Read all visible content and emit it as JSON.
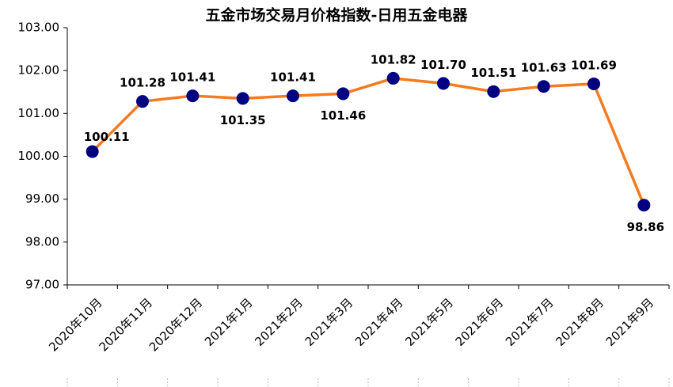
{
  "chart_data": {
    "type": "line",
    "title": "五金市场交易月价格指数-日用五金电器",
    "categories": [
      "2020年10月",
      "2020年11月",
      "2020年12月",
      "2021年1月",
      "2021年2月",
      "2021年3月",
      "2021年4月",
      "2021年5月",
      "2021年6月",
      "2021年7月",
      "2021年8月",
      "2021年9月"
    ],
    "series": [
      {
        "name": "日用五金电器",
        "color": "#f47b20",
        "marker_color": "#000080",
        "values": [
          100.11,
          101.28,
          101.41,
          101.35,
          101.41,
          101.46,
          101.82,
          101.7,
          101.51,
          101.63,
          101.69,
          98.86
        ],
        "value_labels": [
          "100.11",
          "101.28",
          "101.41",
          "101.35",
          "101.41",
          "101.46",
          "101.82",
          "101.70",
          "101.51",
          "101.63",
          "101.69",
          "98.86"
        ]
      }
    ],
    "ylim": [
      97,
      103
    ],
    "yticks": [
      {
        "value": 97,
        "label": "97.00"
      },
      {
        "value": 98,
        "label": "98.00"
      },
      {
        "value": 99,
        "label": "99.00"
      },
      {
        "value": 100,
        "label": "100.00"
      },
      {
        "value": 101,
        "label": "101.00"
      },
      {
        "value": 102,
        "label": "102.00"
      },
      {
        "value": 103,
        "label": "103.00"
      }
    ],
    "grid": false
  }
}
